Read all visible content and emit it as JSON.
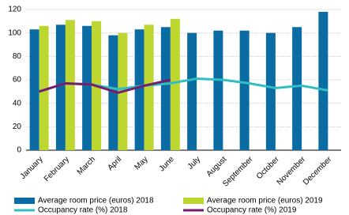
{
  "chart_data": {
    "type": "bar",
    "categories": [
      "January",
      "February",
      "March",
      "April",
      "May",
      "June",
      "July",
      "August",
      "September",
      "October",
      "November",
      "December"
    ],
    "series": [
      {
        "name": "Average room price (euros) 2018",
        "type": "bar",
        "color": "#0a6ca3",
        "values": [
          103,
          107,
          106,
          98,
          103,
          105,
          100,
          102,
          102,
          100,
          105,
          118
        ]
      },
      {
        "name": "Average room price (euros) 2019",
        "type": "bar",
        "color": "#bdd630",
        "values": [
          106,
          111,
          110,
          100,
          107,
          112,
          null,
          null,
          null,
          null,
          null,
          null
        ]
      },
      {
        "name": "Occupancy rate (%) 2018",
        "type": "line",
        "color": "#2fbfc2",
        "values": [
          50,
          57,
          56,
          52,
          55,
          57,
          61,
          60,
          57,
          53,
          55,
          51
        ]
      },
      {
        "name": "Occupancy rate (%) 2019",
        "type": "line",
        "color": "#7a1b6b",
        "values": [
          50,
          57,
          56,
          49,
          55,
          60,
          null,
          null,
          null,
          null,
          null,
          null
        ]
      }
    ],
    "ylim": [
      0,
      120
    ],
    "yticks": [
      0,
      20,
      40,
      60,
      80,
      100,
      120
    ],
    "grid": true
  }
}
